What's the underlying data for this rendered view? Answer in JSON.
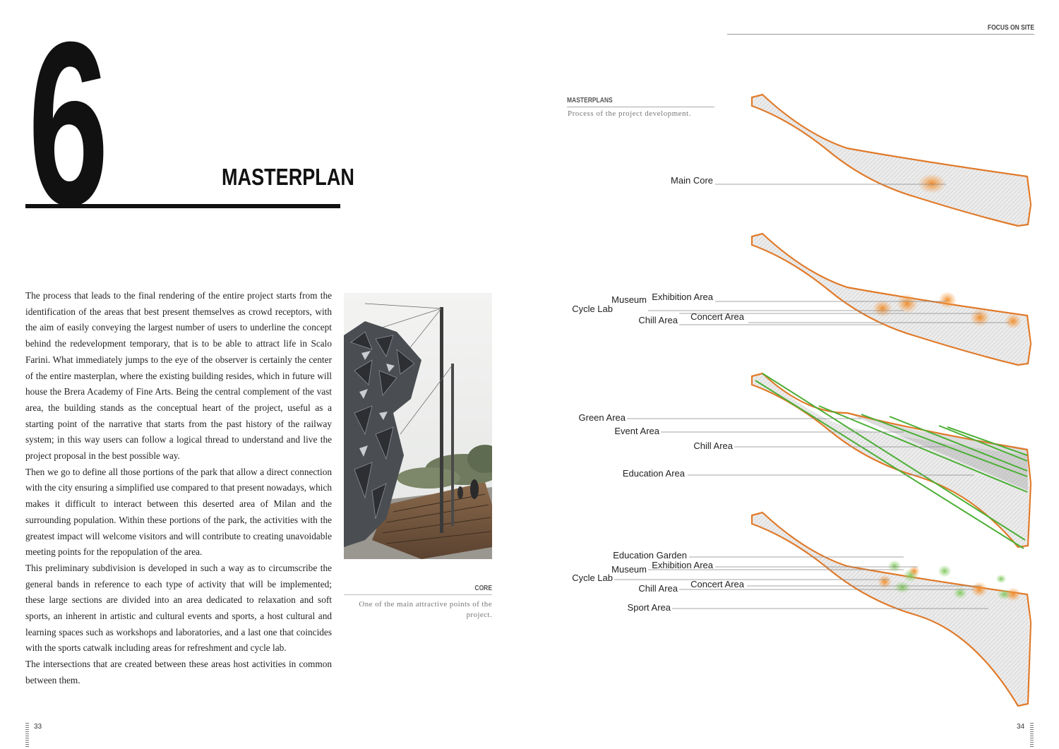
{
  "left_page": {
    "chapter_number": "6",
    "chapter_title": "MASTERPLAN",
    "paragraphs": [
      "The process that leads to the final rendering of the entire project starts from the identification of the areas that best present themselves as crowd receptors, with the aim of easily conveying the largest number of users to underline the concept behind the redevelopment temporary, that is to be able to attract life in Scalo Farini. What immediately jumps to the eye of the observer is certainly the center of the entire masterplan, where the existing building resides, which in future will house the Brera Academy of Fine Arts. Being the central complement of the vast area, the building stands as the conceptual heart of the project, useful as a starting point of the narrative that starts from the past history of the railway system; in this way users can follow a logical thread to understand and live the project proposal in the best possible way.",
      "Then we go to define all those portions of the park that allow a direct connection with the city ensuring a simplified use compared to that present nowadays, which makes it difficult to interact between this deserted area of Milan and the surrounding population. Within these portions of the park, the activities with the greatest impact will welcome visitors and will contribute to creating unavoidable meeting points for the repopulation of the area.",
      "This preliminary subdivision is developed in such a way as to circumscribe the general bands in reference to each type of activity that will be implemented; these large sections are divided into an area dedicated to relaxation and soft sports, an inherent in artistic and cultural events and sports, a host cultural and learning spaces such as workshops and laboratories, and a last one that coincides with the sports catwalk including areas for refreshment and cycle lab.",
      "The intersections that are created between these areas host activities in common between them."
    ],
    "figure": {
      "caption_label": "CORE",
      "caption_text": "One of the main attractive points of the project."
    },
    "page_number": "33"
  },
  "right_page": {
    "header": "FOCUS ON SITE",
    "section_title": "MASTERPLANS",
    "section_subtitle": "Process of the project development.",
    "diagrams": [
      {
        "labels": [
          "Main Core"
        ]
      },
      {
        "labels": [
          "Museum",
          "Exhibition Area",
          "Cycle Lab",
          "Concert Area",
          "Chill Area"
        ]
      },
      {
        "labels": [
          "Green Area",
          "Event Area",
          "Chill Area",
          "Education Area"
        ]
      },
      {
        "labels": [
          "Education Garden",
          "Museum",
          "Exhibition Area",
          "Cycle Lab",
          "Concert Area",
          "Chill Area",
          "Sport Area"
        ]
      }
    ],
    "page_number": "34"
  },
  "colors": {
    "outline_orange": "#e07a2a",
    "spot_orange": "#f0902e",
    "band_green": "#4caf36",
    "spot_green": "#8cd16a"
  }
}
